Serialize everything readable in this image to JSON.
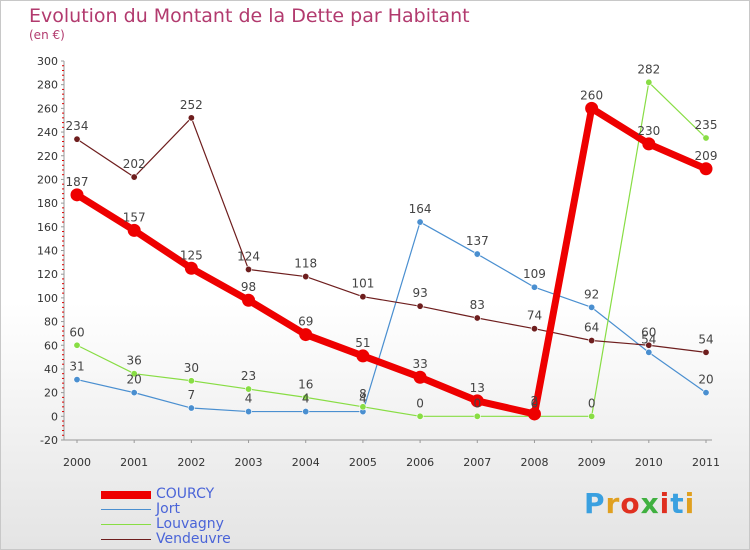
{
  "chart_data": {
    "type": "line",
    "title": "Evolution du Montant de la Dette par Habitant",
    "subtitle": "(en €)",
    "xlabel": "",
    "ylabel": "",
    "categories": [
      "2000",
      "2001",
      "2002",
      "2003",
      "2004",
      "2005",
      "2006",
      "2007",
      "2008",
      "2009",
      "2010",
      "2011"
    ],
    "ylim": [
      -20,
      300
    ],
    "yticks": [
      -20,
      0,
      20,
      40,
      60,
      80,
      100,
      120,
      140,
      160,
      180,
      200,
      220,
      240,
      260,
      280,
      300
    ],
    "grid": false,
    "legend_position": "bottom-left",
    "series": [
      {
        "name": "COURCY",
        "color": "#ee0000",
        "emphasis": true,
        "values": [
          187,
          157,
          125,
          98,
          69,
          51,
          33,
          13,
          2,
          260,
          230,
          209
        ]
      },
      {
        "name": "Jort",
        "color": "#4a8fd0",
        "emphasis": false,
        "values": [
          31,
          20,
          7,
          4,
          4,
          4,
          164,
          137,
          109,
          92,
          54,
          20
        ]
      },
      {
        "name": "Louvagny",
        "color": "#88dd44",
        "emphasis": false,
        "values": [
          60,
          36,
          30,
          23,
          16,
          8,
          0,
          0,
          0,
          0,
          282,
          235
        ]
      },
      {
        "name": "Vendeuvre",
        "color": "#6e1e1e",
        "emphasis": false,
        "values": [
          234,
          202,
          252,
          124,
          118,
          101,
          93,
          83,
          74,
          64,
          60,
          54
        ]
      }
    ]
  },
  "brand": {
    "letters": [
      "P",
      "r",
      "o",
      "x",
      "i",
      "t",
      "i"
    ],
    "colors": [
      "#3aa0e0",
      "#e0a020",
      "#e03020",
      "#40b040",
      "#e03020",
      "#3aa0e0",
      "#e0a020"
    ]
  }
}
